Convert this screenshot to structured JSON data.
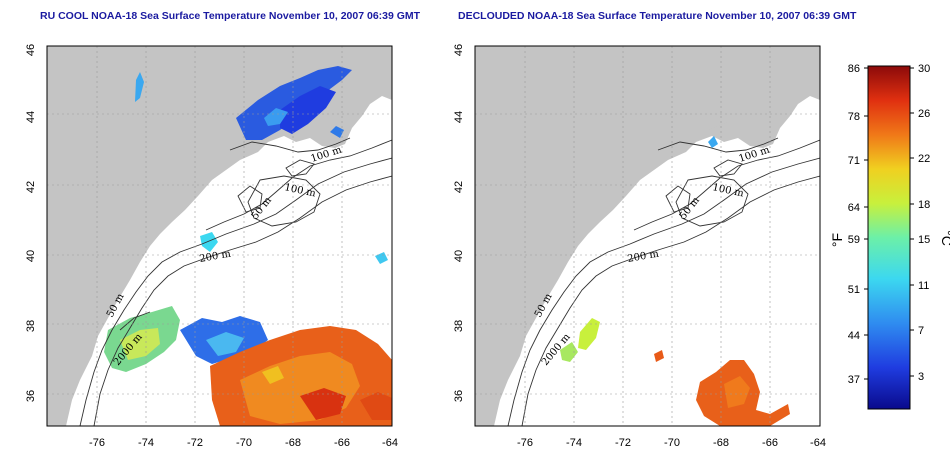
{
  "panels": [
    {
      "title": "RU COOL NOAA-18 Sea Surface Temperature November 10, 2007 06:39 GMT",
      "contour_labels": [
        "100 m",
        "100 m",
        "50 m",
        "200 m",
        "50 m",
        "2000 m"
      ]
    },
    {
      "title": "DECLOUDED NOAA-18 Sea Surface Temperature November 10, 2007 06:39 GMT",
      "contour_labels": [
        "100 m",
        "100 m",
        "50 m",
        "200 m",
        "50 m",
        "2000 m"
      ]
    }
  ],
  "axes": {
    "lon_ticks": [
      "-76",
      "-74",
      "-72",
      "-70",
      "-68",
      "-66",
      "-64"
    ],
    "lat_ticks": [
      "46",
      "44",
      "42",
      "40",
      "38",
      "36"
    ]
  },
  "colorbar": {
    "f_ticks": [
      "86",
      "78",
      "71",
      "64",
      "59",
      "51",
      "44",
      "37"
    ],
    "c_ticks": [
      "30",
      "26",
      "22",
      "18",
      "15",
      "11",
      "7",
      "3"
    ],
    "f_unit": "°F",
    "c_unit": "°C",
    "colors": [
      "#0a0a8c",
      "#1f3ce0",
      "#2f8cf0",
      "#3cd8f0",
      "#6cf0a8",
      "#c8f03c",
      "#f0d020",
      "#f07818",
      "#e03010",
      "#8c0a0a"
    ]
  },
  "colors": {
    "land": "#c4c4c4",
    "ocean": "#ffffff",
    "grid": "#9a9a9a",
    "title": "#1a1aa0"
  }
}
